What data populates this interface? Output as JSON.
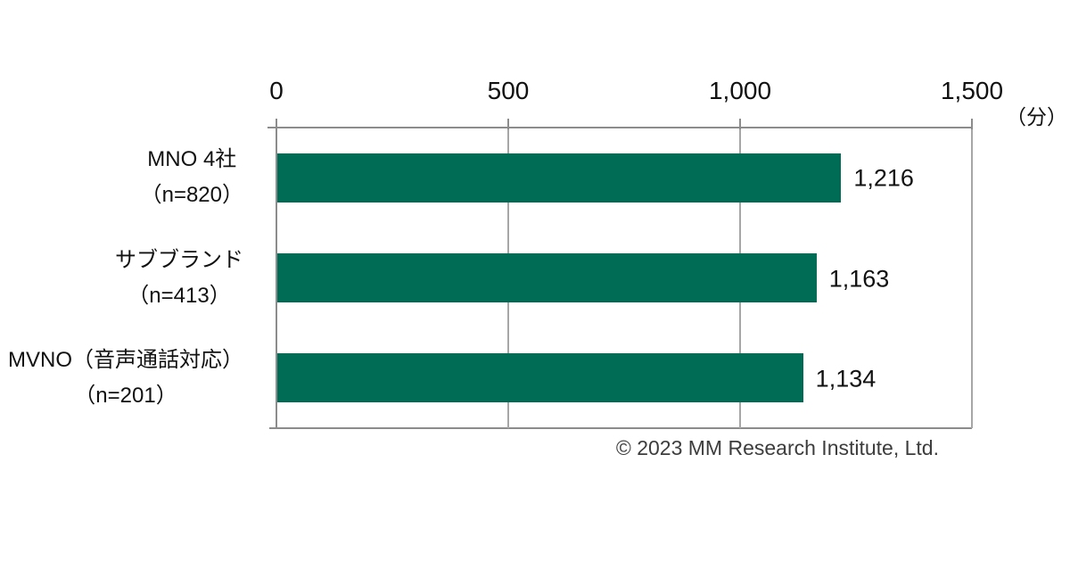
{
  "chart_data": {
    "type": "bar",
    "orientation": "horizontal",
    "title": "",
    "categories": [
      "MNO 4社（n=820）",
      "サブブランド（n=413）",
      "MVNO（音声通話対応）（n=201）"
    ],
    "category_lines": [
      [
        "MNO 4社",
        "（n=820）"
      ],
      [
        "サブブランド",
        "（n=413）"
      ],
      [
        "MVNO（音声通話対応）",
        "（n=201）"
      ]
    ],
    "values": [
      1216,
      1163,
      1134
    ],
    "value_labels": [
      "1,216",
      "1,163",
      "1,134"
    ],
    "xlim": [
      0,
      1500
    ],
    "xticks": [
      0,
      500,
      1000,
      1500
    ],
    "xtick_labels": [
      "0",
      "500",
      "1,000",
      "1,500"
    ],
    "unit_label": "（分）",
    "bar_color": "#006C55",
    "gridline_color": "#A6A6A6",
    "axis_color": "#8C8C8C",
    "grid": "vertical",
    "legend_position": "none"
  },
  "footer": {
    "copyright": "© 2023 MM Research Institute, Ltd."
  }
}
